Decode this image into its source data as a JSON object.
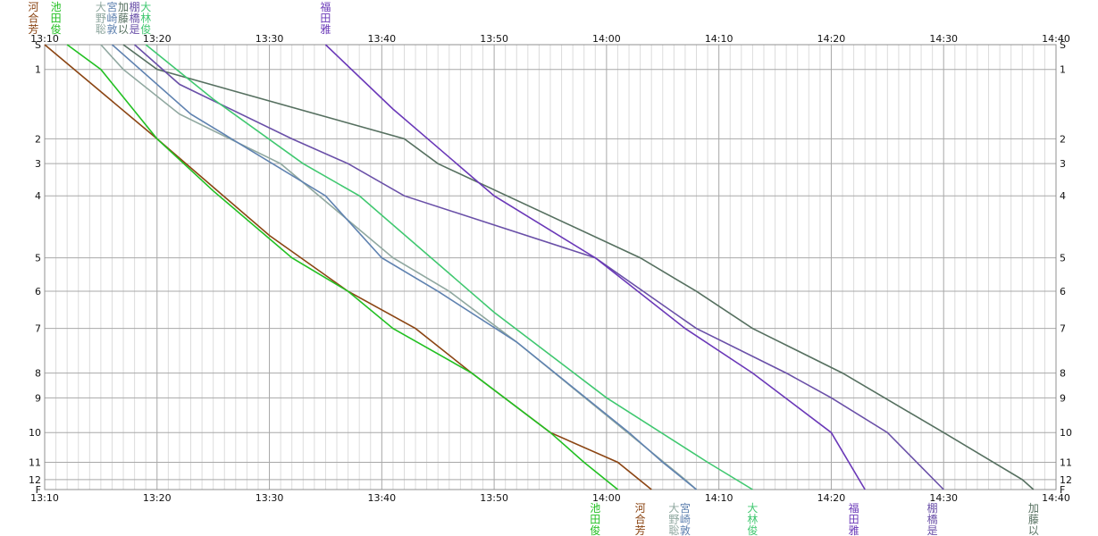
{
  "chart_data": {
    "type": "line",
    "x_axis": {
      "start": "13:10",
      "end": "14:40",
      "ticks": [
        "13:10",
        "13:20",
        "13:30",
        "13:40",
        "13:50",
        "14:00",
        "14:10",
        "14:20",
        "14:30",
        "14:40"
      ]
    },
    "y_axis": {
      "stops": [
        "S",
        "1",
        "2",
        "3",
        "4",
        "5",
        "6",
        "7",
        "8",
        "9",
        "10",
        "11",
        "12",
        "F"
      ],
      "stop_positions": [
        0,
        1,
        3.8,
        4.8,
        6.1,
        8.6,
        9.95,
        11.45,
        13.25,
        14.25,
        15.65,
        16.85,
        17.55,
        17.95
      ]
    },
    "grid": true,
    "series": [
      {
        "name": "河合芳",
        "color": "#8B4513",
        "points": [
          [
            "13:10",
            0
          ],
          [
            "13:20",
            3.8
          ],
          [
            "13:30",
            7.7
          ],
          [
            "13:37",
            9.95
          ],
          [
            "13:43",
            11.45
          ],
          [
            "13:48",
            13.25
          ],
          [
            "13:55",
            15.65
          ],
          [
            "14:01",
            16.85
          ],
          [
            "14:04",
            17.95
          ]
        ]
      },
      {
        "name": "池田俊",
        "color": "#22c022",
        "points": [
          [
            "13:12",
            0
          ],
          [
            "13:15",
            1
          ],
          [
            "13:20",
            3.8
          ],
          [
            "13:25",
            5.9
          ],
          [
            "13:32",
            8.6
          ],
          [
            "13:37",
            9.95
          ],
          [
            "13:41",
            11.45
          ],
          [
            "13:48",
            13.25
          ],
          [
            "13:55",
            15.65
          ],
          [
            "13:58",
            16.85
          ],
          [
            "14:01",
            17.95
          ]
        ]
      },
      {
        "name": "大野聡",
        "color": "#90a8a0",
        "points": [
          [
            "13:15",
            0
          ],
          [
            "13:17",
            1
          ],
          [
            "13:22",
            2.8
          ],
          [
            "13:31",
            4.8
          ],
          [
            "13:41",
            8.6
          ],
          [
            "13:46",
            9.95
          ],
          [
            "13:52",
            12.0
          ],
          [
            "14:07",
            17.55
          ],
          [
            "14:08",
            17.95
          ]
        ]
      },
      {
        "name": "宮崎敦",
        "color": "#5f82b0",
        "points": [
          [
            "13:16",
            0
          ],
          [
            "13:23",
            2.8
          ],
          [
            "13:35",
            6.1
          ],
          [
            "13:40",
            8.6
          ],
          [
            "13:45",
            9.95
          ],
          [
            "13:52",
            12.0
          ],
          [
            "14:02",
            15.65
          ],
          [
            "14:05",
            16.85
          ],
          [
            "14:08",
            17.95
          ]
        ]
      },
      {
        "name": "加藤以",
        "color": "#567060",
        "points": [
          [
            "13:17",
            0
          ],
          [
            "13:20",
            1
          ],
          [
            "13:42",
            3.8
          ],
          [
            "13:45",
            4.8
          ],
          [
            "14:03",
            8.6
          ],
          [
            "14:08",
            9.95
          ],
          [
            "14:13",
            11.45
          ],
          [
            "14:21",
            13.25
          ],
          [
            "14:30",
            15.65
          ],
          [
            "14:37",
            17.55
          ],
          [
            "14:38",
            17.95
          ]
        ]
      },
      {
        "name": "棚橋是",
        "color": "#6a50a8",
        "points": [
          [
            "13:18",
            0
          ],
          [
            "13:22",
            1.6
          ],
          [
            "13:32",
            3.8
          ],
          [
            "13:37",
            4.8
          ],
          [
            "13:42",
            6.1
          ],
          [
            "13:59",
            8.6
          ],
          [
            "14:08",
            11.45
          ],
          [
            "14:16",
            13.25
          ],
          [
            "14:20",
            14.25
          ],
          [
            "14:25",
            15.65
          ],
          [
            "14:30",
            17.95
          ]
        ]
      },
      {
        "name": "大林俊",
        "color": "#40c870",
        "points": [
          [
            "13:19",
            0
          ],
          [
            "13:25",
            2.2
          ],
          [
            "13:33",
            4.8
          ],
          [
            "13:38",
            6.1
          ],
          [
            "13:50",
            10.8
          ],
          [
            "14:00",
            14.25
          ],
          [
            "14:09",
            16.85
          ],
          [
            "14:13",
            17.95
          ]
        ]
      },
      {
        "name": "福田雅",
        "color": "#6a38b8",
        "points": [
          [
            "13:35",
            0
          ],
          [
            "13:41",
            2.6
          ],
          [
            "13:50",
            6.1
          ],
          [
            "13:59",
            8.6
          ],
          [
            "14:07",
            11.45
          ],
          [
            "14:13",
            13.25
          ],
          [
            "14:20",
            15.65
          ],
          [
            "14:23",
            17.95
          ]
        ]
      }
    ],
    "labels_top": [
      {
        "text": "河合芳",
        "at": "13:09"
      },
      {
        "text": "池田俊",
        "at": "13:11"
      },
      {
        "text": "大野聡",
        "at": "13:15"
      },
      {
        "text": "宮崎敦",
        "at": "13:16"
      },
      {
        "text": "加藤以",
        "at": "13:17"
      },
      {
        "text": "棚橋是",
        "at": "13:18"
      },
      {
        "text": "大林俊",
        "at": "13:19"
      },
      {
        "text": "福田雅",
        "at": "13:35"
      }
    ],
    "labels_bottom": [
      {
        "text": "池田俊",
        "at": "13:59"
      },
      {
        "text": "河合芳",
        "at": "14:03"
      },
      {
        "text": "大野聡",
        "at": "14:06"
      },
      {
        "text": "宮崎敦",
        "at": "14:07"
      },
      {
        "text": "大林俊",
        "at": "14:13"
      },
      {
        "text": "福田雅",
        "at": "14:22"
      },
      {
        "text": "棚橋是",
        "at": "14:29"
      },
      {
        "text": "加藤以",
        "at": "14:38"
      }
    ]
  }
}
